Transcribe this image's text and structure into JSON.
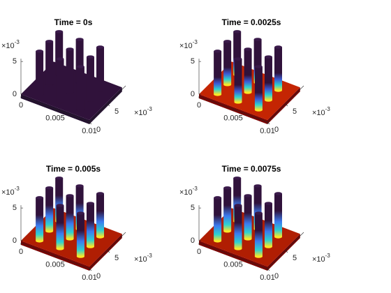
{
  "chart_data": [
    {
      "type": "surface3d",
      "title": "Time = 0s",
      "xlim": [
        0,
        0.01
      ],
      "xticks": [
        0,
        0.005,
        0.01
      ],
      "ylim": [
        0,
        10
      ],
      "yticks": [
        0,
        5
      ],
      "zlim": [
        0,
        8
      ],
      "zticks": [
        0,
        5
      ],
      "y_exponent_base": "×10",
      "y_exponent_power": "-3",
      "z_exponent_base": "×10",
      "z_exponent_power": "-3"
    },
    {
      "type": "surface3d",
      "title": "Time = 0.0025s",
      "xlim": [
        0,
        0.01
      ],
      "xticks": [
        0,
        0.005,
        0.01
      ],
      "ylim": [
        0,
        10
      ],
      "yticks": [
        0,
        5
      ],
      "zlim": [
        0,
        8
      ],
      "zticks": [
        0,
        5
      ],
      "y_exponent_base": "×10",
      "y_exponent_power": "-3",
      "z_exponent_base": "×10",
      "z_exponent_power": "-3"
    },
    {
      "type": "surface3d",
      "title": "Time = 0.005s",
      "xlim": [
        0,
        0.01
      ],
      "xticks": [
        0,
        0.005,
        0.01
      ],
      "ylim": [
        0,
        10
      ],
      "yticks": [
        0,
        5
      ],
      "zlim": [
        0,
        8
      ],
      "zticks": [
        0,
        5
      ],
      "y_exponent_base": "×10",
      "y_exponent_power": "-3",
      "z_exponent_base": "×10",
      "z_exponent_power": "-3"
    },
    {
      "type": "surface3d",
      "title": "Time = 0.0075s",
      "xlim": [
        0,
        0.01
      ],
      "xticks": [
        0,
        0.005,
        0.01
      ],
      "ylim": [
        0,
        10
      ],
      "yticks": [
        0,
        5
      ],
      "zlim": [
        0,
        8
      ],
      "zticks": [
        0,
        5
      ],
      "y_exponent_base": "×10",
      "y_exponent_power": "-3",
      "z_exponent_base": "×10",
      "z_exponent_power": "-3"
    }
  ]
}
